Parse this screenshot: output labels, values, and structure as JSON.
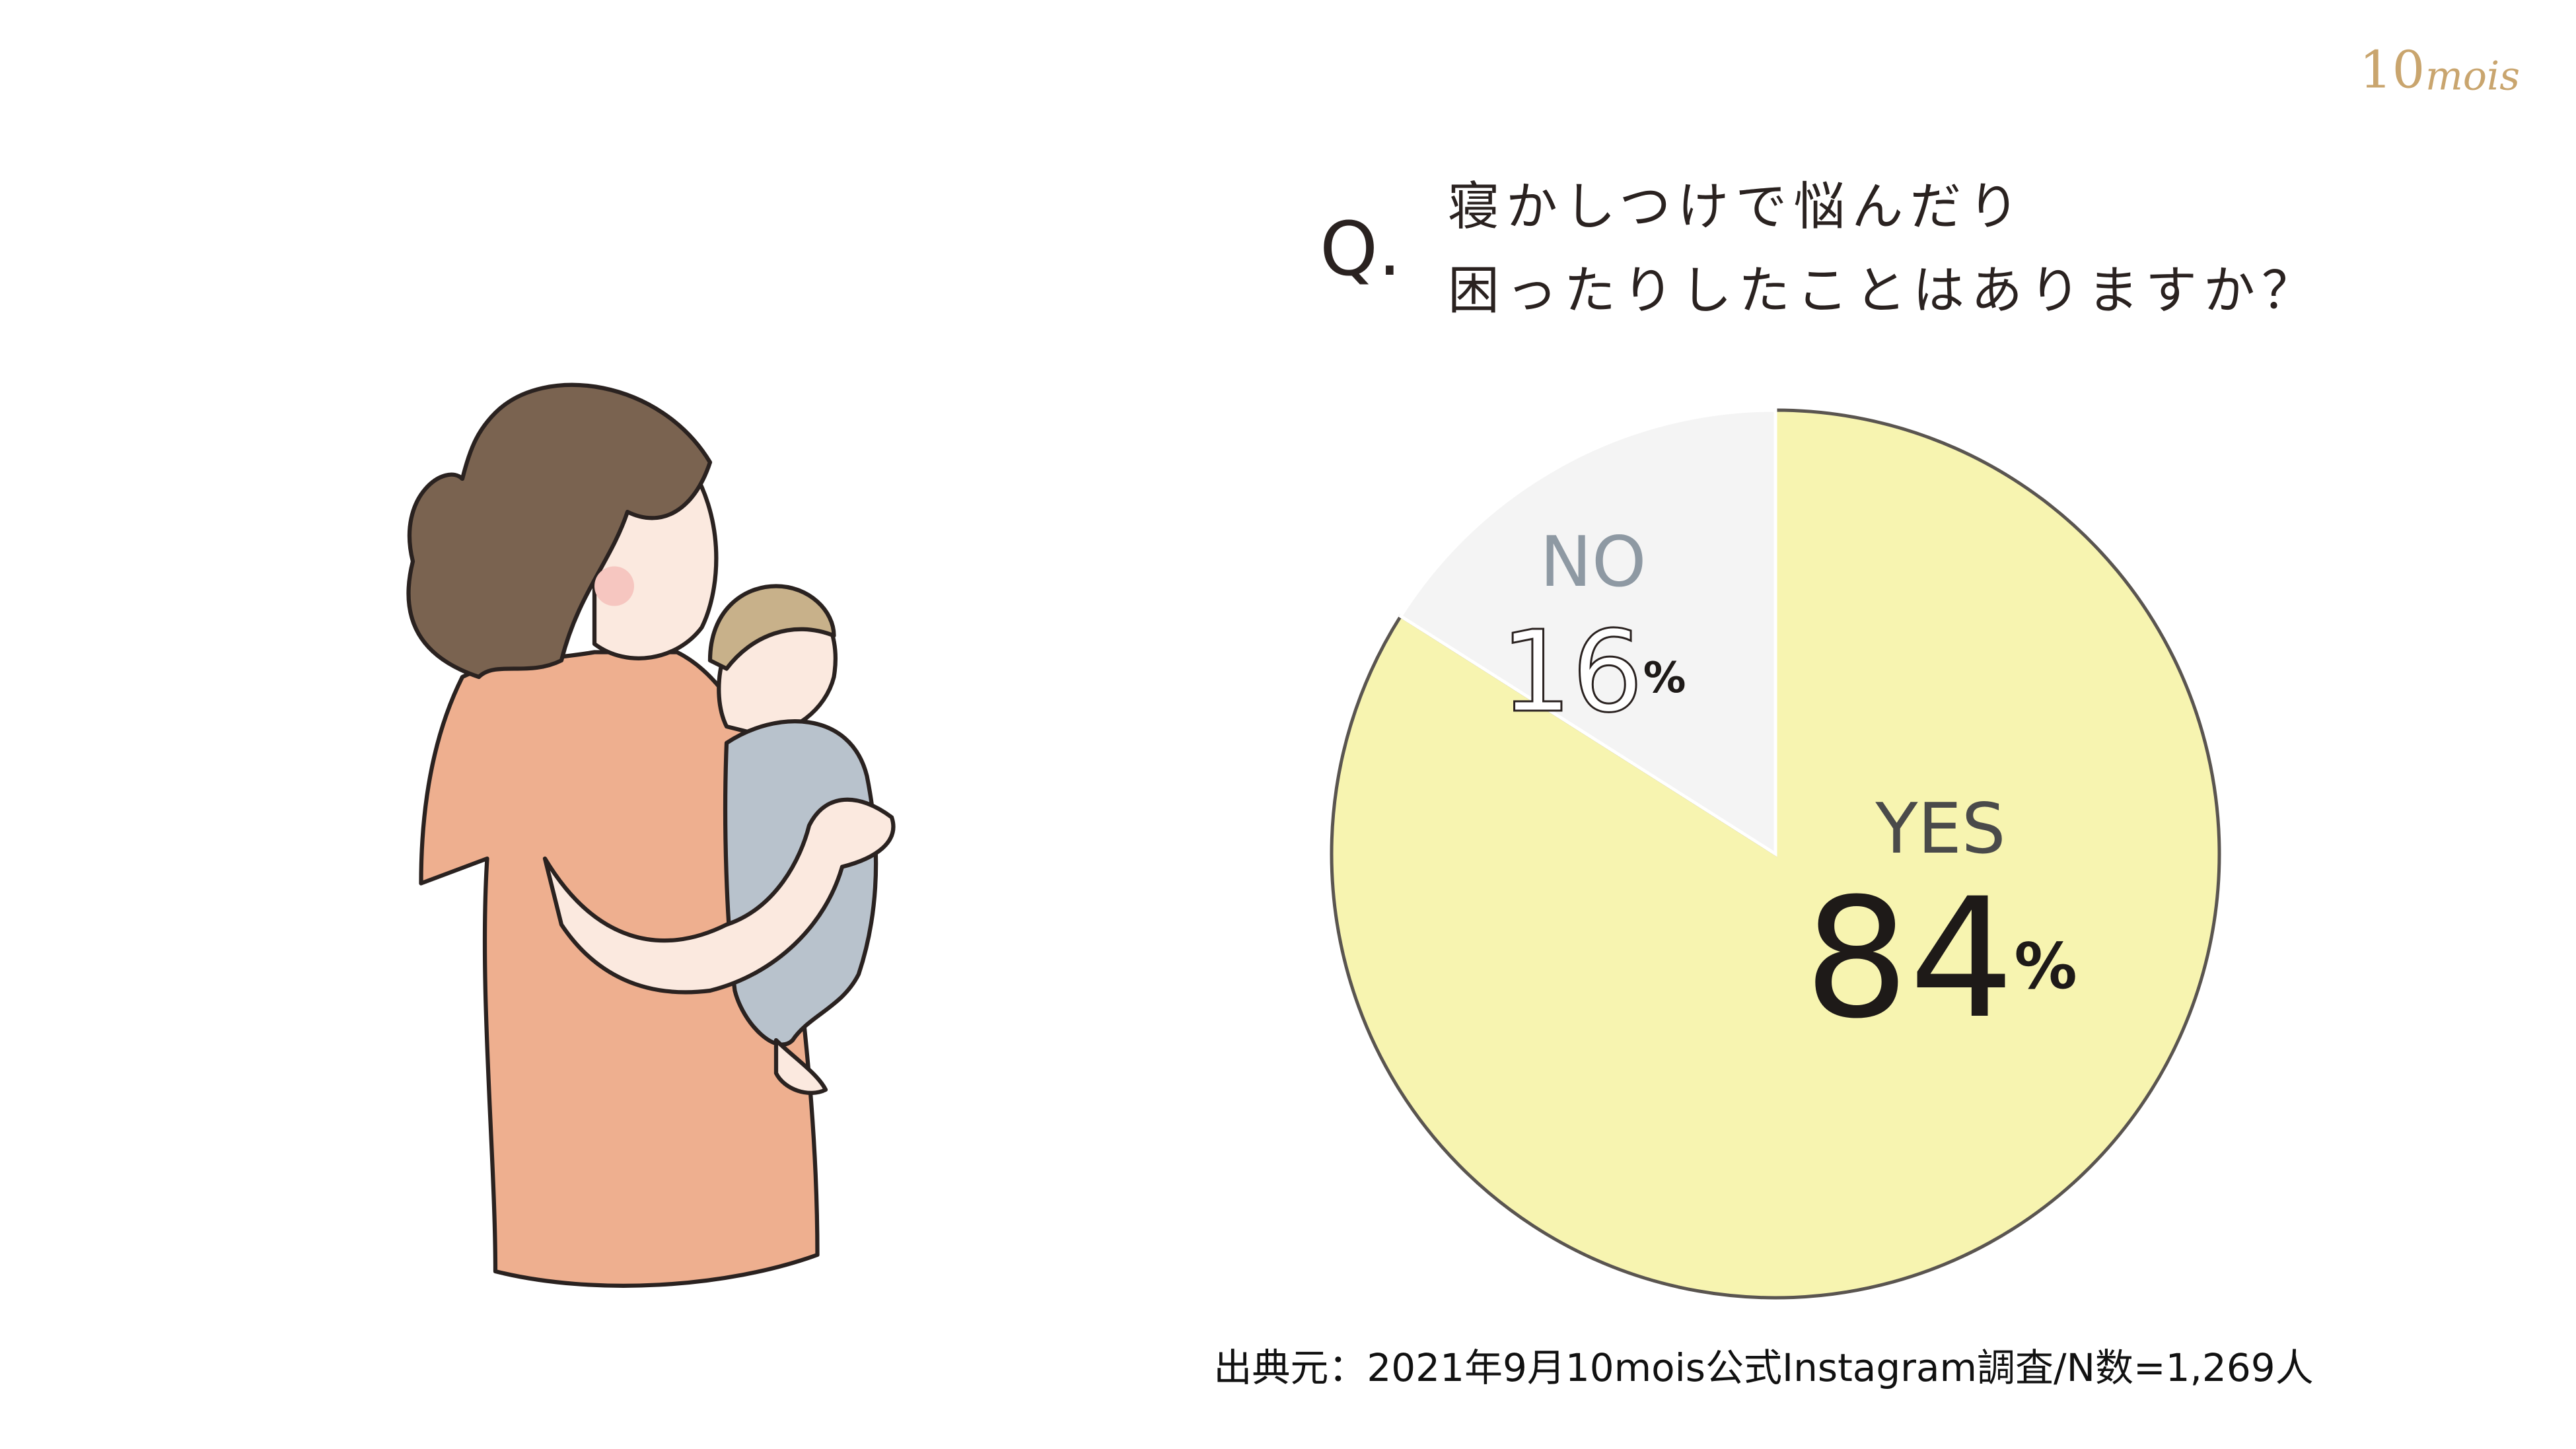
{
  "chart_data": {
    "type": "pie",
    "logo": [
      "10",
      "mois"
    ],
    "title_mark": "Q.",
    "title": [
      "寝かしつけで悩んだり",
      "困ったりしたことはありますか？"
    ],
    "categories": [
      "YES",
      "NO"
    ],
    "values": [
      84,
      16
    ],
    "value_labels": [
      "84%",
      "16%"
    ],
    "colors": [
      "#f7f4b0",
      "#f4f4f4"
    ],
    "source": "出典元：2021年9月10mois公式Instagram調査/N数=1,269人"
  }
}
